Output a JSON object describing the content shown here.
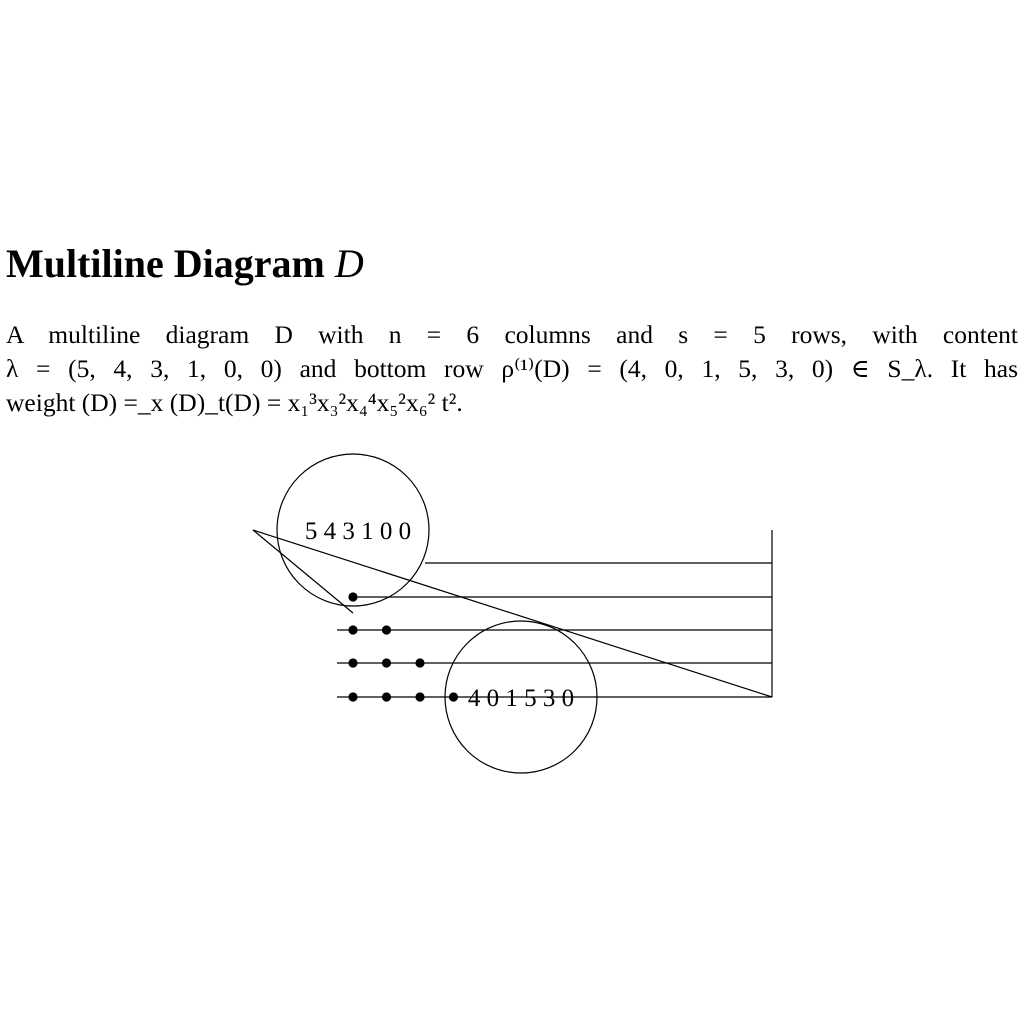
{
  "title": {
    "text": "Multiline Diagram ",
    "var": "D"
  },
  "description": {
    "line1": "A multiline diagram D with n = 6 columns and s = 5 rows, with content",
    "line2": "λ = (5, 4, 3, 1, 0, 0) and bottom row ρ⁽¹⁾(D) = (4, 0, 1, 5, 3, 0) ∈ S_λ. It has",
    "line3": "weight (D) =_x (D)_t(D) = x₁³x₃²x₄⁴x₅²x₆² t²."
  },
  "diagram": {
    "columns": 6,
    "rows": 5,
    "content": [
      5,
      4,
      3,
      1,
      0,
      0
    ],
    "bottom_row": [
      4,
      0,
      1,
      5,
      3,
      0
    ],
    "content_label": "5 4 3 1 0 0",
    "bottom_row_label": "4 0 1 5 3 0",
    "dots_per_row": [
      0,
      1,
      2,
      3,
      4
    ]
  }
}
